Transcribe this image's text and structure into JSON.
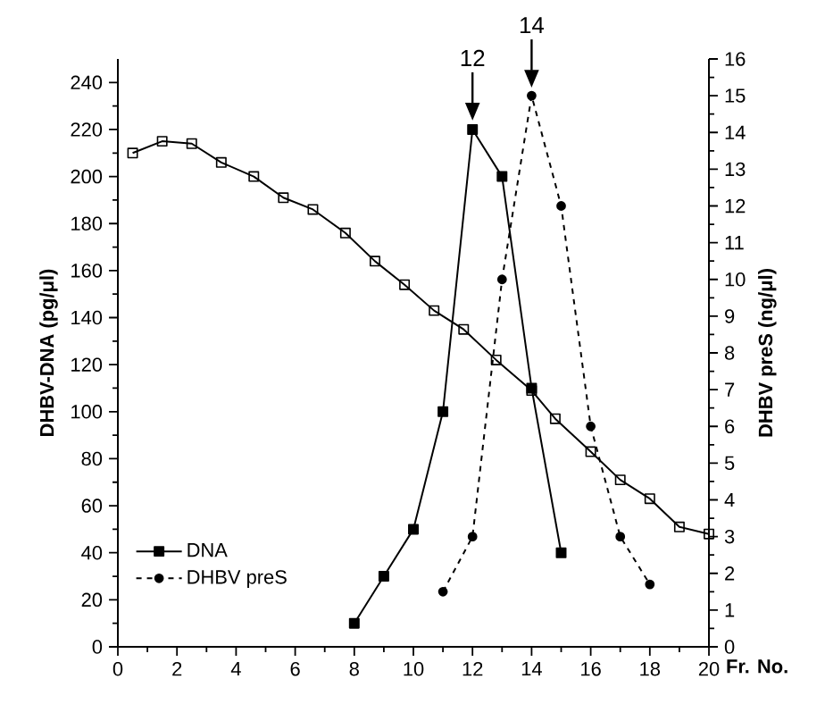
{
  "chart_data": {
    "type": "line",
    "xlabel": "Fr. No.",
    "ylabel": "DHBV-DNA (pg/μl)",
    "y2label": "DHBV preS (ng/μl)",
    "xlim": [
      0,
      20
    ],
    "xticks": [
      0,
      2,
      4,
      6,
      8,
      10,
      12,
      14,
      16,
      18,
      20
    ],
    "ylim": [
      0,
      250
    ],
    "yticks": [
      0,
      20,
      40,
      60,
      80,
      100,
      120,
      140,
      160,
      180,
      200,
      220,
      240
    ],
    "y2lim": [
      0,
      16
    ],
    "y2ticks": [
      0,
      1,
      2,
      3,
      4,
      5,
      6,
      7,
      8,
      9,
      10,
      11,
      12,
      13,
      14,
      15,
      16
    ],
    "legend": "bottom left",
    "grid": false,
    "annotations": [
      {
        "text": "12",
        "x": 12,
        "y": 220
      },
      {
        "text": "14",
        "x": 14,
        "y": 234
      }
    ],
    "series": [
      {
        "name": "DNA",
        "color": "#000000",
        "marker": "square",
        "line_style": "solid",
        "x": [
          8,
          9,
          10,
          11,
          12,
          13,
          14,
          15
        ],
        "values": [
          10,
          30,
          50,
          100,
          220,
          200,
          110,
          40
        ]
      },
      {
        "name": "DHBV preS",
        "color": "#000000",
        "marker": "circle",
        "line_style": "dashed",
        "axis": "y2",
        "x": [
          11,
          12,
          13,
          14,
          15,
          16,
          17,
          18
        ],
        "values": [
          1.5,
          3,
          10,
          15,
          12,
          6,
          3,
          1.7
        ]
      },
      {
        "color": "#000000",
        "marker": "square",
        "line_style": "solid",
        "x": [
          0.5,
          1.5,
          2.5,
          3.5,
          4.6,
          5.6,
          6.6,
          7.7,
          8.7,
          9.7,
          10.7,
          11.7,
          12.8,
          14,
          14.8,
          16,
          17,
          18,
          19,
          20
        ],
        "values": [
          210,
          215,
          214,
          206,
          200,
          191,
          186,
          176,
          164,
          154,
          143,
          135,
          122,
          109,
          97,
          83,
          71,
          63,
          51,
          48
        ]
      }
    ]
  }
}
